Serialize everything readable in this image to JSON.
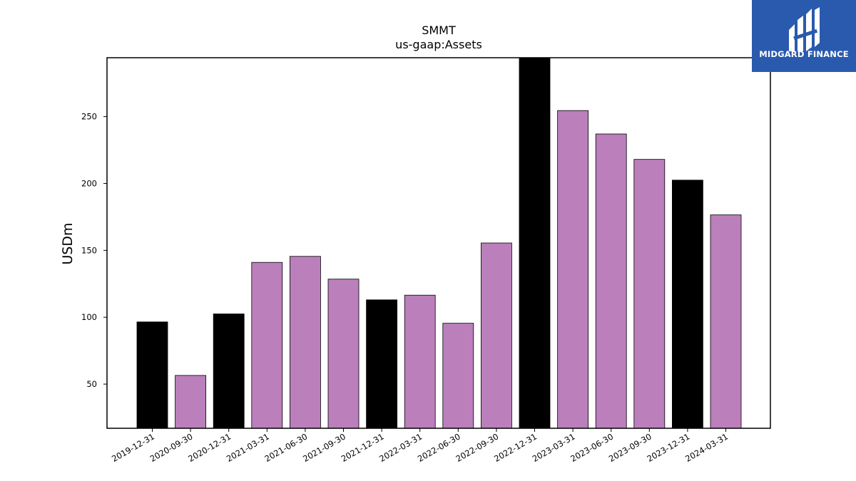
{
  "brand": {
    "name": "MIDGARD FINANCE",
    "color": "#2a5aad"
  },
  "chart_data": {
    "type": "bar",
    "title": "SMMT",
    "subtitle": "us-gaap:Assets",
    "xlabel": "",
    "ylabel": "USDm",
    "categories": [
      "2019-12-31",
      "2020-09-30",
      "2020-12-31",
      "2021-03-31",
      "2021-06-30",
      "2021-09-30",
      "2021-12-31",
      "2022-03-31",
      "2022-06-30",
      "2022-09-30",
      "2022-12-31",
      "2023-03-31",
      "2023-06-30",
      "2023-09-30",
      "2023-12-31",
      "2024-03-31"
    ],
    "values": [
      96.5,
      56.5,
      102.5,
      141,
      145.5,
      128.5,
      113,
      116.5,
      95.5,
      155.5,
      294,
      254.5,
      237,
      218,
      202.5,
      176.5
    ],
    "bar_colors": [
      "#000000",
      "#bb7fbc",
      "#000000",
      "#bb7fbc",
      "#bb7fbc",
      "#bb7fbc",
      "#000000",
      "#bb7fbc",
      "#bb7fbc",
      "#bb7fbc",
      "#000000",
      "#bb7fbc",
      "#bb7fbc",
      "#bb7fbc",
      "#000000",
      "#bb7fbc"
    ],
    "colors": {
      "year_end": "#000000",
      "quarter": "#bb7fbc"
    },
    "yticks": [
      50,
      100,
      150,
      200,
      250
    ],
    "ylim": [
      17,
      294
    ],
    "grid": false,
    "legend": "none"
  }
}
